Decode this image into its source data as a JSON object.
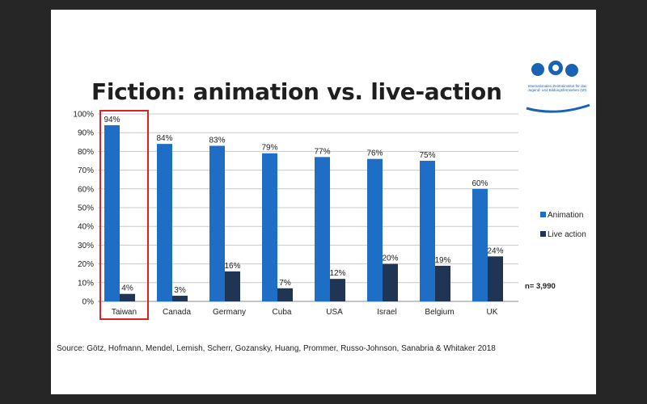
{
  "slide": {
    "title": "Fiction: animation vs. live-action",
    "n_label": "n= 3,990",
    "source": "Source: Götz, Hofmann, Mendel, Lemish, Scherr, Gozansky, Huang, Prommer, Russo-Johnson, Sanabria & Whitaker 2018",
    "logo_text": "Internationales Zentralinstitut für das Jugend- und Bildungsfernsehen (IZI)",
    "highlight_color": "#e02020"
  },
  "chart_data": {
    "type": "bar",
    "title": "",
    "xlabel": "",
    "ylabel": "",
    "ylim": [
      0,
      100
    ],
    "y_ticks": [
      "0%",
      "10%",
      "20%",
      "30%",
      "40%",
      "50%",
      "60%",
      "70%",
      "80%",
      "90%",
      "100%"
    ],
    "grid": true,
    "legend_position": "right",
    "categories": [
      "Taiwan",
      "Canada",
      "Germany",
      "Cuba",
      "USA",
      "Israel",
      "Belgium",
      "UK"
    ],
    "highlighted_category": "Taiwan",
    "series": [
      {
        "name": "Animation",
        "color": "#1f6ec6",
        "values": [
          94,
          84,
          83,
          79,
          77,
          76,
          75,
          60
        ],
        "labels": [
          "94%",
          "84%",
          "83%",
          "79%",
          "77%",
          "76%",
          "75%",
          "60%"
        ]
      },
      {
        "name": "Live action",
        "color": "#1f3553",
        "values": [
          4,
          3,
          16,
          7,
          12,
          20,
          19,
          24
        ],
        "labels": [
          "4%",
          "3%",
          "16%",
          "7%",
          "12%",
          "20%",
          "19%",
          "24%"
        ]
      }
    ]
  }
}
